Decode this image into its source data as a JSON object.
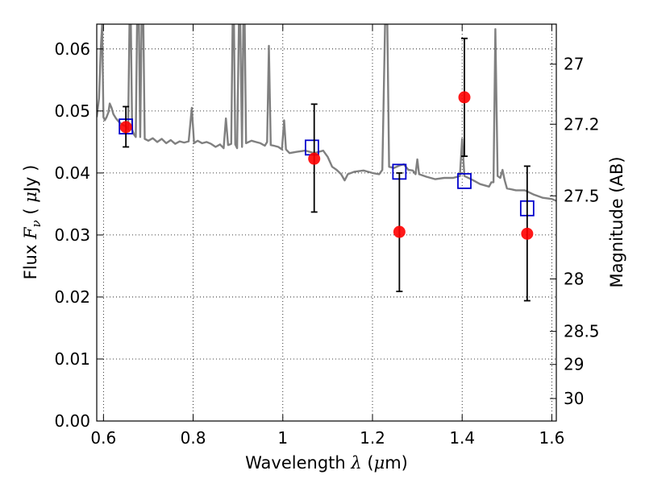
{
  "chart_data": {
    "type": "scatter",
    "x_label": {
      "prefix": "Wavelength  ",
      "symbol": "λ",
      "unit_open": " (",
      "unit_symbol": "μ",
      "unit_close": "m)"
    },
    "y_label": {
      "prefix": "Flux  ",
      "symbol": "F",
      "subscript": "ν",
      "unit_open": "  ( ",
      "unit_symbol": "μ",
      "unit_close": "Jy )"
    },
    "y2_label": "Magnitude (AB)",
    "xlim": [
      0.585,
      1.61
    ],
    "ylim": [
      0.0,
      0.064
    ],
    "x_ticks": [
      {
        "value": 0.6,
        "label": "0.6"
      },
      {
        "value": 0.8,
        "label": "0.8"
      },
      {
        "value": 1.0,
        "label": "1"
      },
      {
        "value": 1.2,
        "label": "1.2"
      },
      {
        "value": 1.4,
        "label": "1.4"
      },
      {
        "value": 1.6,
        "label": "1.6"
      }
    ],
    "y_ticks": [
      {
        "value": 0.0,
        "label": "0.00"
      },
      {
        "value": 0.01,
        "label": "0.01"
      },
      {
        "value": 0.02,
        "label": "0.02"
      },
      {
        "value": 0.03,
        "label": "0.03"
      },
      {
        "value": 0.04,
        "label": "0.04"
      },
      {
        "value": 0.05,
        "label": "0.05"
      },
      {
        "value": 0.06,
        "label": "0.06"
      }
    ],
    "magnitude_ticks": [
      {
        "mag": 27.0,
        "label": "27"
      },
      {
        "mag": 27.2,
        "label": "27.2"
      },
      {
        "mag": 27.5,
        "label": "27.5"
      },
      {
        "mag": 28.0,
        "label": "28"
      },
      {
        "mag": 28.5,
        "label": "28.5"
      },
      {
        "mag": 29.0,
        "label": "29"
      },
      {
        "mag": 30.0,
        "label": "30"
      }
    ],
    "grid": true,
    "series": [
      {
        "kind": "line",
        "color": "#808080",
        "points": [
          [
            0.585,
            0.049
          ],
          [
            0.59,
            0.052
          ],
          [
            0.594,
            0.06
          ],
          [
            0.597,
            0.064
          ],
          [
            0.6,
            0.049
          ],
          [
            0.603,
            0.0485
          ],
          [
            0.607,
            0.049
          ],
          [
            0.611,
            0.0498
          ],
          [
            0.614,
            0.0512
          ],
          [
            0.618,
            0.0505
          ],
          [
            0.622,
            0.0495
          ],
          [
            0.628,
            0.0488
          ],
          [
            0.635,
            0.0482
          ],
          [
            0.642,
            0.0478
          ],
          [
            0.65,
            0.0475
          ],
          [
            0.655,
            0.047
          ],
          [
            0.658,
            0.064
          ],
          [
            0.661,
            0.064
          ],
          [
            0.664,
            0.047
          ],
          [
            0.668,
            0.0462
          ],
          [
            0.672,
            0.0458
          ],
          [
            0.675,
            0.064
          ],
          [
            0.679,
            0.064
          ],
          [
            0.682,
            0.0458
          ],
          [
            0.685,
            0.064
          ],
          [
            0.689,
            0.064
          ],
          [
            0.692,
            0.0455
          ],
          [
            0.7,
            0.0452
          ],
          [
            0.71,
            0.0456
          ],
          [
            0.72,
            0.045
          ],
          [
            0.73,
            0.0455
          ],
          [
            0.74,
            0.0448
          ],
          [
            0.75,
            0.0453
          ],
          [
            0.76,
            0.0447
          ],
          [
            0.77,
            0.0451
          ],
          [
            0.78,
            0.0449
          ],
          [
            0.79,
            0.0451
          ],
          [
            0.797,
            0.0505
          ],
          [
            0.802,
            0.0448
          ],
          [
            0.81,
            0.0452
          ],
          [
            0.82,
            0.0448
          ],
          [
            0.83,
            0.045
          ],
          [
            0.84,
            0.0447
          ],
          [
            0.85,
            0.0442
          ],
          [
            0.86,
            0.0446
          ],
          [
            0.868,
            0.044
          ],
          [
            0.873,
            0.0488
          ],
          [
            0.878,
            0.0445
          ],
          [
            0.885,
            0.0447
          ],
          [
            0.888,
            0.064
          ],
          [
            0.891,
            0.064
          ],
          [
            0.894,
            0.0446
          ],
          [
            0.898,
            0.044
          ],
          [
            0.902,
            0.064
          ],
          [
            0.905,
            0.064
          ],
          [
            0.909,
            0.0442
          ],
          [
            0.912,
            0.064
          ],
          [
            0.915,
            0.064
          ],
          [
            0.918,
            0.0448
          ],
          [
            0.93,
            0.0452
          ],
          [
            0.94,
            0.045
          ],
          [
            0.95,
            0.0448
          ],
          [
            0.96,
            0.0444
          ],
          [
            0.965,
            0.045
          ],
          [
            0.969,
            0.0605
          ],
          [
            0.973,
            0.0445
          ],
          [
            0.98,
            0.0444
          ],
          [
            0.99,
            0.0442
          ],
          [
            0.998,
            0.0438
          ],
          [
            1.003,
            0.0485
          ],
          [
            1.007,
            0.0438
          ],
          [
            1.015,
            0.0432
          ],
          [
            1.03,
            0.0434
          ],
          [
            1.05,
            0.0436
          ],
          [
            1.07,
            0.0432
          ],
          [
            1.09,
            0.0436
          ],
          [
            1.1,
            0.0426
          ],
          [
            1.11,
            0.041
          ],
          [
            1.12,
            0.0405
          ],
          [
            1.13,
            0.0398
          ],
          [
            1.138,
            0.0388
          ],
          [
            1.145,
            0.0398
          ],
          [
            1.16,
            0.0402
          ],
          [
            1.18,
            0.0404
          ],
          [
            1.2,
            0.04
          ],
          [
            1.215,
            0.0398
          ],
          [
            1.222,
            0.0405
          ],
          [
            1.228,
            0.064
          ],
          [
            1.233,
            0.064
          ],
          [
            1.237,
            0.041
          ],
          [
            1.248,
            0.0408
          ],
          [
            1.26,
            0.0412
          ],
          [
            1.27,
            0.0414
          ],
          [
            1.28,
            0.0405
          ],
          [
            1.29,
            0.0404
          ],
          [
            1.296,
            0.0398
          ],
          [
            1.3,
            0.0422
          ],
          [
            1.304,
            0.0398
          ],
          [
            1.32,
            0.0394
          ],
          [
            1.34,
            0.039
          ],
          [
            1.36,
            0.0392
          ],
          [
            1.38,
            0.0392
          ],
          [
            1.395,
            0.0395
          ],
          [
            1.4,
            0.0455
          ],
          [
            1.405,
            0.0395
          ],
          [
            1.42,
            0.039
          ],
          [
            1.44,
            0.0382
          ],
          [
            1.46,
            0.0378
          ],
          [
            1.465,
            0.0385
          ],
          [
            1.47,
            0.0385
          ],
          [
            1.474,
            0.0632
          ],
          [
            1.479,
            0.0395
          ],
          [
            1.485,
            0.0392
          ],
          [
            1.49,
            0.0405
          ],
          [
            1.495,
            0.0388
          ],
          [
            1.5,
            0.0375
          ],
          [
            1.52,
            0.0372
          ],
          [
            1.54,
            0.0372
          ],
          [
            1.56,
            0.0365
          ],
          [
            1.58,
            0.036
          ],
          [
            1.6,
            0.0358
          ],
          [
            1.61,
            0.0355
          ]
        ]
      },
      {
        "kind": "open_square",
        "color": "#0000cc",
        "points": [
          [
            0.65,
            0.0475
          ],
          [
            1.065,
            0.0441
          ],
          [
            1.26,
            0.0402
          ],
          [
            1.405,
            0.0387
          ],
          [
            1.545,
            0.0343
          ]
        ]
      },
      {
        "kind": "point_errorbar",
        "color": "#ff0000",
        "errorbar_color": "#000000",
        "points": [
          {
            "x": 0.65,
            "y": 0.0474,
            "ylo": 0.0442,
            "yhi": 0.0507
          },
          {
            "x": 1.07,
            "y": 0.0423,
            "ylo": 0.0337,
            "yhi": 0.0511
          },
          {
            "x": 1.26,
            "y": 0.0305,
            "ylo": 0.0209,
            "yhi": 0.04
          },
          {
            "x": 1.405,
            "y": 0.0522,
            "ylo": 0.0427,
            "yhi": 0.0617
          },
          {
            "x": 1.545,
            "y": 0.0302,
            "ylo": 0.0194,
            "yhi": 0.0411
          }
        ]
      }
    ]
  }
}
